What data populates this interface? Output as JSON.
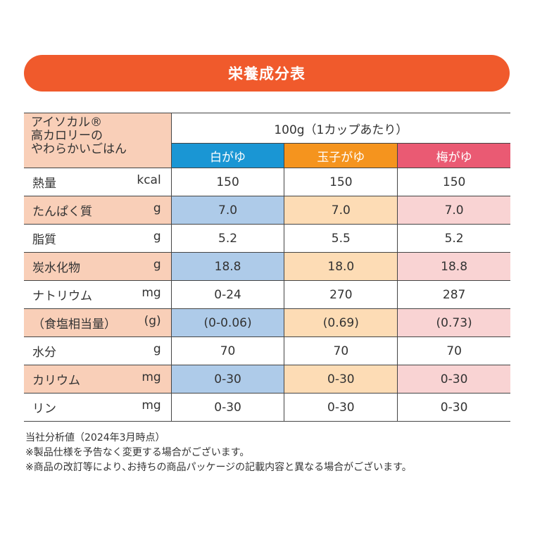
{
  "title": "栄養成分表",
  "product": [
    "アイソカル®",
    "高カロリーの",
    "やわらかいごはん"
  ],
  "per": "100g（1カップあたり）",
  "columns": [
    {
      "name": "白がゆ",
      "color": "#1a96d4"
    },
    {
      "name": "玉子がゆ",
      "color": "#f5941e"
    },
    {
      "name": "梅がゆ",
      "color": "#ea5a73"
    }
  ],
  "rows": [
    {
      "label": "熱量",
      "unit": "kcal",
      "values": [
        "150",
        "150",
        "150"
      ]
    },
    {
      "label": "たんぱく質",
      "unit": "g",
      "values": [
        "7.0",
        "7.0",
        "7.0"
      ]
    },
    {
      "label": "脂質",
      "unit": "g",
      "values": [
        "5.2",
        "5.5",
        "5.2"
      ]
    },
    {
      "label": "炭水化物",
      "unit": "g",
      "values": [
        "18.8",
        "18.0",
        "18.8"
      ]
    },
    {
      "label": "ナトリウム",
      "unit": "mg",
      "values": [
        "0-24",
        "270",
        "287"
      ]
    },
    {
      "label": "（食塩相当量）",
      "unit": "(g)",
      "values": [
        "(0-0.06)",
        "(0.69)",
        "(0.73)"
      ]
    },
    {
      "label": "水分",
      "unit": "g",
      "values": [
        "70",
        "70",
        "70"
      ]
    },
    {
      "label": "カリウム",
      "unit": "mg",
      "values": [
        "0-30",
        "0-30",
        "0-30"
      ]
    },
    {
      "label": "リン",
      "unit": "mg",
      "values": [
        "0-30",
        "0-30",
        "0-30"
      ]
    }
  ],
  "notes": [
    "当社分析値（2024年3月時点）",
    "※製品仕様を予告なく変更する場合がございます。",
    "※商品の改訂等により､お持ちの商品パッケージの記載内容と異なる場合がございます。"
  ]
}
